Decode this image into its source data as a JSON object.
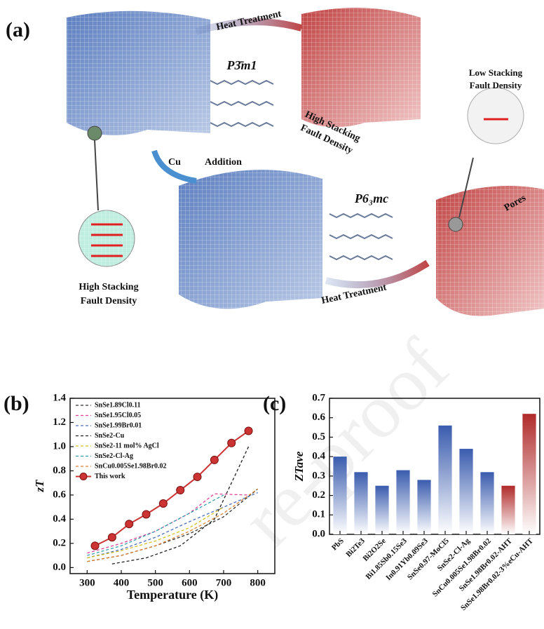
{
  "diagram": {
    "label": "(a)",
    "heat_top": "Heat Treatment",
    "group_top": "P3̄m1",
    "high_top": [
      "High Stacking",
      "Fault Density"
    ],
    "low_right": [
      "Low Stacking",
      "Fault Density"
    ],
    "cu": "Cu",
    "addition": "Addition",
    "group_bottom": "P6₃mc",
    "high_left": [
      "High Stacking",
      "Fault Density"
    ],
    "heat_bottom": "Heat Treatment",
    "pores": "Pores",
    "watermark": "re-proof"
  },
  "chart_data": [
    {
      "type": "line",
      "panel_label": "(b)",
      "x_label": "Temperature (K)",
      "y_label": "zT",
      "xlim": [
        250,
        850
      ],
      "xticks": [
        300,
        400,
        500,
        600,
        700,
        800
      ],
      "ylim": [
        -0.05,
        1.4
      ],
      "yticks": [
        {
          "value": 0,
          "label": "0.0"
        },
        0.2,
        0.4,
        0.6,
        0.8,
        {
          "value": 1,
          "label": "1.0"
        },
        1.2,
        1.4
      ],
      "legend": "upper left",
      "series": [
        {
          "name": "SnSe1.89Cl0.11",
          "color": "#333333",
          "linestyle": "dashed",
          "x": [
            300,
            400,
            500,
            600,
            700,
            800
          ],
          "values": [
            0.05,
            0.1,
            0.18,
            0.28,
            0.42,
            0.65
          ]
        },
        {
          "name": "SnSe1.95Cl0.05",
          "color": "#e0409a",
          "linestyle": "dashed",
          "x": [
            300,
            400,
            500,
            600,
            673,
            773
          ],
          "values": [
            0.12,
            0.2,
            0.3,
            0.45,
            0.61,
            0.6
          ]
        },
        {
          "name": "SnSe1.99Br0.01",
          "color": "#4a6fc0",
          "linestyle": "dashed",
          "x": [
            300,
            400,
            500,
            600,
            700,
            800
          ],
          "values": [
            0.08,
            0.15,
            0.25,
            0.38,
            0.5,
            0.62
          ]
        },
        {
          "name": "SnSe2-Cu",
          "color": "#222222",
          "linestyle": "dashed",
          "x": [
            373,
            473,
            573,
            673,
            773
          ],
          "values": [
            0.03,
            0.08,
            0.18,
            0.4,
            1.0
          ]
        },
        {
          "name": "SnSe2-11 mol% AgCl",
          "color": "#d8c020",
          "linestyle": "dashed",
          "x": [
            300,
            400,
            500,
            600,
            700
          ],
          "values": [
            0.08,
            0.14,
            0.22,
            0.33,
            0.5
          ]
        },
        {
          "name": "SnSe2-Cl-Ag",
          "color": "#30a0b0",
          "linestyle": "dashed",
          "x": [
            300,
            400,
            500,
            600,
            700
          ],
          "values": [
            0.1,
            0.18,
            0.3,
            0.45,
            0.6
          ]
        },
        {
          "name": "SnCu0.005Se1.98Br0.02",
          "color": "#e08030",
          "linestyle": "dashed",
          "x": [
            300,
            400,
            500,
            600,
            700,
            800
          ],
          "values": [
            0.05,
            0.1,
            0.18,
            0.3,
            0.45,
            0.65
          ]
        },
        {
          "name": "This work",
          "color": "#cc3333",
          "linestyle": "solid",
          "marker": "circle",
          "x": [
            323,
            373,
            423,
            473,
            523,
            573,
            623,
            673,
            723,
            773
          ],
          "values": [
            0.18,
            0.25,
            0.36,
            0.44,
            0.53,
            0.64,
            0.75,
            0.89,
            1.03,
            1.13
          ]
        }
      ]
    },
    {
      "type": "bar",
      "panel_label": "(c)",
      "y_label": "ZTave",
      "ylim": [
        0,
        0.7
      ],
      "yticks": [
        {
          "value": 0,
          "label": "0.0"
        },
        0.1,
        0.2,
        0.3,
        0.4,
        0.5,
        0.6,
        0.7
      ],
      "categories": [
        "PbS",
        "Bi2Te3",
        "Bi2O2Se",
        "Bi1.85Sb0.15Se3",
        "In0.91Yb0.09Se3",
        "SnSe0.97-MoCl5",
        "SnSe2-Cl-Ag",
        "SnCu0.005Se1.98Br0.02",
        "SnSe1.98Br0.02-AHT",
        "SnSe1.98Br0.02-3%eCu-AHT"
      ],
      "values": [
        0.4,
        0.32,
        0.25,
        0.33,
        0.28,
        0.56,
        0.44,
        0.32,
        0.25,
        0.62
      ],
      "colors": [
        "#3a5cae",
        "#3a5cae",
        "#3a5cae",
        "#3a5cae",
        "#3a5cae",
        "#3a5cae",
        "#3a5cae",
        "#3a5cae",
        "#b02a2a",
        "#b02a2a"
      ]
    }
  ]
}
